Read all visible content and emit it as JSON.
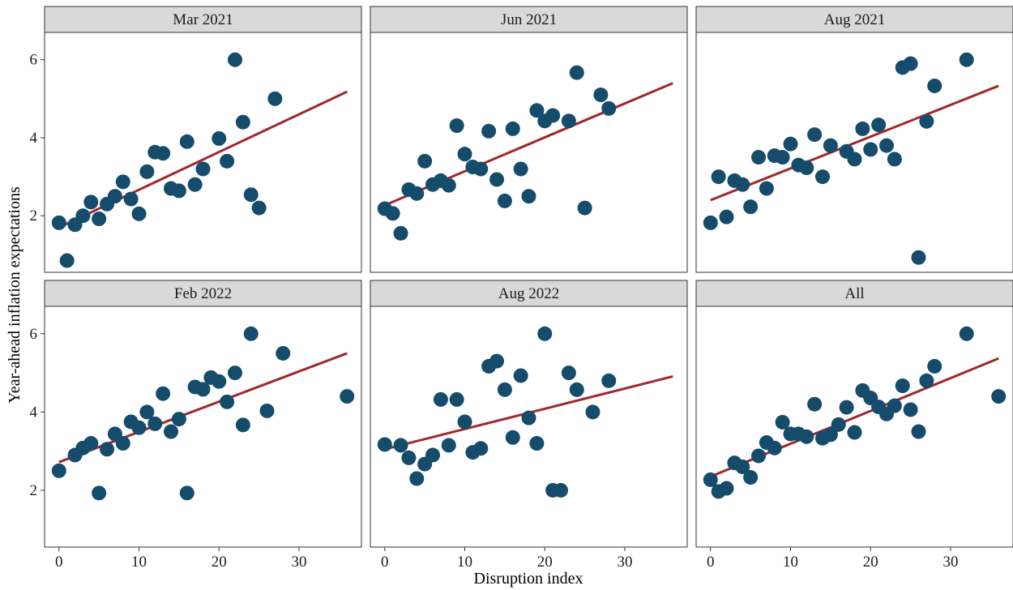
{
  "chart_data": {
    "type": "scatter",
    "xlabel": "Disruption index",
    "ylabel": "Year-ahead inflation expectations",
    "xlim": [
      -1.8,
      37.8
    ],
    "ylim": [
      0.55,
      6.7
    ],
    "xticks": [
      0,
      10,
      20,
      30
    ],
    "yticks": [
      2,
      4,
      6
    ],
    "grid": false,
    "marker_color": "#154c6b",
    "fit_color": "#a0282c",
    "panels": [
      {
        "name": "Mar 2021",
        "fit": {
          "x": [
            0,
            36
          ],
          "y": [
            1.7,
            5.18
          ]
        },
        "points": [
          [
            0,
            1.82
          ],
          [
            1,
            0.85
          ],
          [
            2,
            1.77
          ],
          [
            3,
            2.0
          ],
          [
            4,
            2.35
          ],
          [
            5,
            1.92
          ],
          [
            6,
            2.3
          ],
          [
            7,
            2.5
          ],
          [
            8,
            2.87
          ],
          [
            9,
            2.43
          ],
          [
            10,
            2.05
          ],
          [
            11,
            3.13
          ],
          [
            12,
            3.63
          ],
          [
            13,
            3.6
          ],
          [
            14,
            2.7
          ],
          [
            15,
            2.64
          ],
          [
            16,
            3.9
          ],
          [
            17,
            2.8
          ],
          [
            18,
            3.2
          ],
          [
            20,
            3.98
          ],
          [
            21,
            3.4
          ],
          [
            22,
            6.0
          ],
          [
            23,
            4.4
          ],
          [
            24,
            2.54
          ],
          [
            25,
            2.2
          ],
          [
            27,
            5.0
          ]
        ]
      },
      {
        "name": "Jun 2021",
        "fit": {
          "x": [
            0,
            36
          ],
          "y": [
            2.27,
            5.4
          ]
        },
        "points": [
          [
            0,
            2.18
          ],
          [
            1,
            2.06
          ],
          [
            2,
            1.55
          ],
          [
            3,
            2.67
          ],
          [
            4,
            2.57
          ],
          [
            5,
            3.4
          ],
          [
            6,
            2.8
          ],
          [
            7,
            2.9
          ],
          [
            8,
            2.78
          ],
          [
            9,
            4.31
          ],
          [
            10,
            3.58
          ],
          [
            11,
            3.25
          ],
          [
            12,
            3.2
          ],
          [
            13,
            4.17
          ],
          [
            14,
            2.93
          ],
          [
            15,
            2.38
          ],
          [
            16,
            4.23
          ],
          [
            17,
            3.2
          ],
          [
            18,
            2.5
          ],
          [
            19,
            4.7
          ],
          [
            20,
            4.43
          ],
          [
            21,
            4.57
          ],
          [
            23,
            4.43
          ],
          [
            24,
            5.67
          ],
          [
            25,
            2.2
          ],
          [
            27,
            5.1
          ],
          [
            28,
            4.75
          ]
        ]
      },
      {
        "name": "Aug 2021",
        "fit": {
          "x": [
            0,
            36
          ],
          "y": [
            2.4,
            5.33
          ]
        },
        "points": [
          [
            0,
            1.82
          ],
          [
            1,
            3.0
          ],
          [
            2,
            1.97
          ],
          [
            3,
            2.9
          ],
          [
            4,
            2.8
          ],
          [
            5,
            2.23
          ],
          [
            6,
            3.5
          ],
          [
            7,
            2.7
          ],
          [
            8,
            3.54
          ],
          [
            9,
            3.5
          ],
          [
            10,
            3.84
          ],
          [
            11,
            3.3
          ],
          [
            12,
            3.23
          ],
          [
            13,
            4.08
          ],
          [
            14,
            3.0
          ],
          [
            15,
            3.8
          ],
          [
            17,
            3.65
          ],
          [
            18,
            3.45
          ],
          [
            19,
            4.23
          ],
          [
            20,
            3.7
          ],
          [
            21,
            4.33
          ],
          [
            22,
            3.8
          ],
          [
            23,
            3.45
          ],
          [
            24,
            5.8
          ],
          [
            25,
            5.9
          ],
          [
            26,
            0.93
          ],
          [
            27,
            4.42
          ],
          [
            28,
            5.33
          ],
          [
            32,
            6.0
          ]
        ]
      },
      {
        "name": "Feb 2022",
        "fit": {
          "x": [
            0,
            36
          ],
          "y": [
            2.72,
            5.5
          ]
        },
        "points": [
          [
            0,
            2.5
          ],
          [
            2,
            2.9
          ],
          [
            3,
            3.08
          ],
          [
            4,
            3.2
          ],
          [
            5,
            1.93
          ],
          [
            6,
            3.05
          ],
          [
            7,
            3.44
          ],
          [
            8,
            3.2
          ],
          [
            9,
            3.75
          ],
          [
            10,
            3.6
          ],
          [
            11,
            4.0
          ],
          [
            12,
            3.7
          ],
          [
            13,
            4.47
          ],
          [
            14,
            3.5
          ],
          [
            15,
            3.82
          ],
          [
            16,
            1.93
          ],
          [
            17,
            4.64
          ],
          [
            18,
            4.58
          ],
          [
            19,
            4.88
          ],
          [
            20,
            4.78
          ],
          [
            21,
            4.26
          ],
          [
            22,
            5.0
          ],
          [
            23,
            3.67
          ],
          [
            24,
            6.0
          ],
          [
            26,
            4.03
          ],
          [
            28,
            5.5
          ],
          [
            36,
            4.4
          ]
        ]
      },
      {
        "name": "Aug 2022",
        "fit": {
          "x": [
            0,
            36
          ],
          "y": [
            3.05,
            4.91
          ]
        },
        "points": [
          [
            0,
            3.17
          ],
          [
            2,
            3.15
          ],
          [
            3,
            2.83
          ],
          [
            4,
            2.3
          ],
          [
            5,
            2.67
          ],
          [
            6,
            2.9
          ],
          [
            7,
            4.32
          ],
          [
            8,
            3.15
          ],
          [
            9,
            4.32
          ],
          [
            10,
            3.75
          ],
          [
            11,
            2.97
          ],
          [
            12,
            3.07
          ],
          [
            13,
            5.17
          ],
          [
            14,
            5.3
          ],
          [
            15,
            4.57
          ],
          [
            16,
            3.35
          ],
          [
            17,
            4.93
          ],
          [
            18,
            3.85
          ],
          [
            19,
            3.2
          ],
          [
            20,
            6.0
          ],
          [
            21,
            2.0
          ],
          [
            22,
            2.0
          ],
          [
            23,
            5.0
          ],
          [
            24,
            4.57
          ],
          [
            26,
            4.0
          ],
          [
            28,
            4.8
          ]
        ]
      },
      {
        "name": "All",
        "fit": {
          "x": [
            0,
            36
          ],
          "y": [
            2.35,
            5.37
          ]
        },
        "points": [
          [
            0,
            2.27
          ],
          [
            1,
            1.97
          ],
          [
            2,
            2.05
          ],
          [
            3,
            2.7
          ],
          [
            4,
            2.6
          ],
          [
            5,
            2.33
          ],
          [
            6,
            2.88
          ],
          [
            7,
            3.22
          ],
          [
            8,
            3.08
          ],
          [
            9,
            3.74
          ],
          [
            10,
            3.44
          ],
          [
            11,
            3.44
          ],
          [
            12,
            3.37
          ],
          [
            13,
            4.2
          ],
          [
            14,
            3.33
          ],
          [
            15,
            3.42
          ],
          [
            16,
            3.68
          ],
          [
            17,
            4.12
          ],
          [
            18,
            3.48
          ],
          [
            19,
            4.55
          ],
          [
            20,
            4.36
          ],
          [
            21,
            4.13
          ],
          [
            22,
            3.95
          ],
          [
            23,
            4.16
          ],
          [
            24,
            4.67
          ],
          [
            25,
            4.06
          ],
          [
            26,
            3.5
          ],
          [
            27,
            4.8
          ],
          [
            28,
            5.17
          ],
          [
            32,
            6.0
          ],
          [
            36,
            4.4
          ]
        ]
      }
    ]
  }
}
